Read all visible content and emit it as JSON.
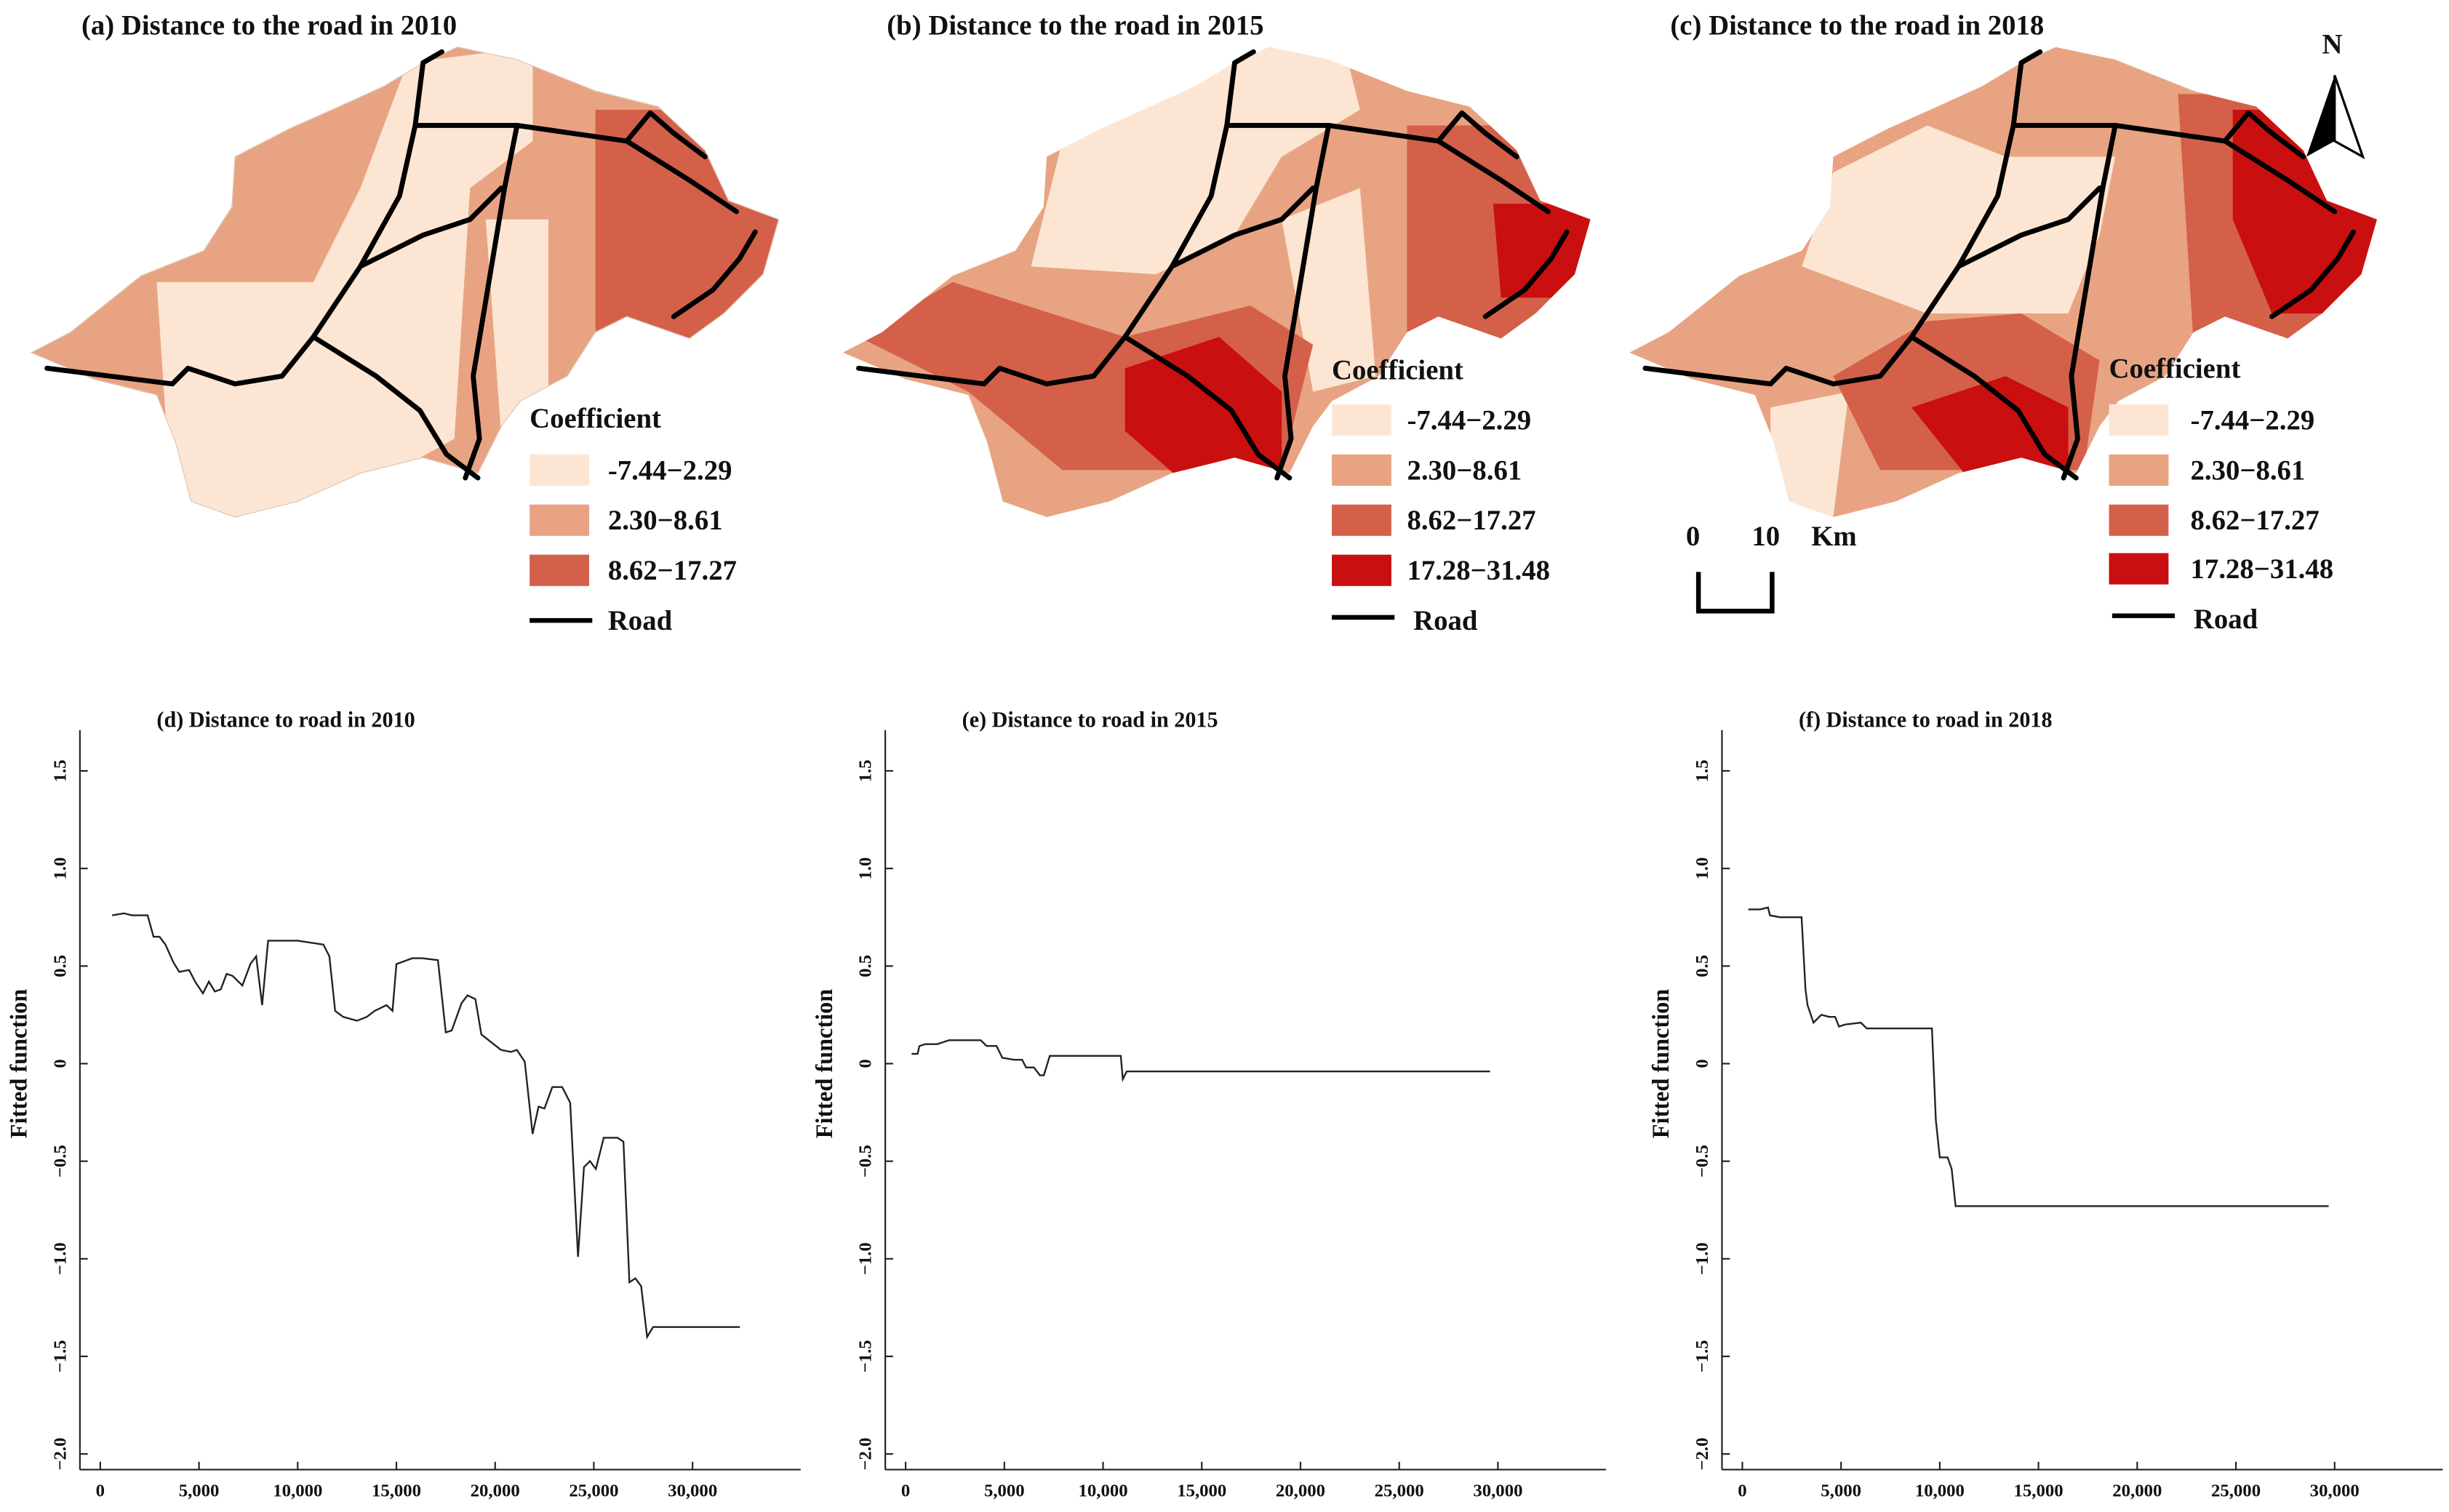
{
  "colors": {
    "class1": "#fce6d3",
    "class2": "#e8a482",
    "class3": "#d4604a",
    "class4": "#c90f0f",
    "road": "#000000"
  },
  "maps": [
    {
      "title": "(a) Distance to the road in 2010",
      "legend_title": "Coefficient",
      "classes": [
        "-7.44−2.29",
        "2.30−8.61",
        "8.62−17.27"
      ],
      "road_label": "Road"
    },
    {
      "title": "(b) Distance to the road in 2015",
      "legend_title": "Coefficient",
      "classes": [
        "-7.44−2.29",
        "2.30−8.61",
        "8.62−17.27",
        "17.28−31.48"
      ],
      "road_label": "Road"
    },
    {
      "title": "(c) Distance to the road in 2018",
      "legend_title": "Coefficient",
      "classes": [
        "-7.44−2.29",
        "2.30−8.61",
        "8.62−17.27",
        "17.28−31.48"
      ],
      "road_label": "Road"
    }
  ],
  "north_label": "N",
  "scale_bar": {
    "zero": "0",
    "ten": "10",
    "unit": "Km"
  },
  "chart_data": [
    {
      "type": "line",
      "title": "(d) Distance to road in 2010",
      "xlabel": "",
      "ylabel": "Fitted function",
      "xlim": [
        0,
        34000
      ],
      "ylim": [
        -2.0,
        1.7
      ],
      "xticks": [
        0,
        5000,
        10000,
        15000,
        20000,
        25000,
        30000
      ],
      "xtick_labels": [
        "0",
        "5,000",
        "10,000",
        "15,000",
        "20,000",
        "25,000",
        "30,000"
      ],
      "yticks": [
        -2.0,
        -1.5,
        -1.0,
        -0.5,
        0,
        0.5,
        1.0,
        1.5
      ],
      "ytick_labels": [
        "−2.0",
        "−1.5",
        "−1.0",
        "−0.5",
        "0",
        "0.5",
        "1.0",
        "1.5"
      ],
      "x": [
        600,
        1200,
        1600,
        2400,
        2700,
        3000,
        3300,
        3700,
        4000,
        4500,
        4800,
        5200,
        5500,
        5800,
        6100,
        6400,
        6700,
        7200,
        7600,
        7900,
        8200,
        8500,
        10000,
        11300,
        11600,
        11900,
        12300,
        13000,
        13500,
        13900,
        14500,
        14800,
        15000,
        15800,
        16300,
        17100,
        17500,
        17800,
        18300,
        18600,
        19000,
        19300,
        19800,
        20300,
        20800,
        21100,
        21500,
        21900,
        22200,
        22500,
        22900,
        23400,
        23800,
        24200,
        24500,
        24800,
        25100,
        25500,
        26200,
        26500,
        26800,
        27100,
        27400,
        27700,
        28000,
        32400
      ],
      "y": [
        0.76,
        0.77,
        0.76,
        0.76,
        0.65,
        0.65,
        0.61,
        0.52,
        0.47,
        0.48,
        0.42,
        0.36,
        0.42,
        0.37,
        0.38,
        0.46,
        0.45,
        0.4,
        0.51,
        0.55,
        0.3,
        0.63,
        0.63,
        0.61,
        0.55,
        0.27,
        0.24,
        0.22,
        0.24,
        0.27,
        0.3,
        0.27,
        0.51,
        0.54,
        0.54,
        0.53,
        0.16,
        0.17,
        0.31,
        0.35,
        0.33,
        0.15,
        0.11,
        0.07,
        0.06,
        0.07,
        0.01,
        -0.36,
        -0.22,
        -0.23,
        -0.12,
        -0.12,
        -0.2,
        -0.99,
        -0.53,
        -0.5,
        -0.54,
        -0.38,
        -0.38,
        -0.4,
        -1.12,
        -1.1,
        -1.14,
        -1.4,
        -1.35,
        -1.35
      ]
    },
    {
      "type": "line",
      "title": "(e) Distance to road in 2015",
      "xlabel": "",
      "ylabel": "Fitted function",
      "xlim": [
        0,
        34000
      ],
      "ylim": [
        -2.0,
        1.7
      ],
      "xticks": [
        0,
        5000,
        10000,
        15000,
        20000,
        25000,
        30000
      ],
      "xtick_labels": [
        "0",
        "5,000",
        "10,000",
        "15,000",
        "20,000",
        "25,000",
        "30,000"
      ],
      "yticks": [
        -2.0,
        -1.5,
        -1.0,
        -0.5,
        0,
        0.5,
        1.0,
        1.5
      ],
      "ytick_labels": [
        "−2.0",
        "−1.5",
        "−1.0",
        "−0.5",
        "0",
        "0.5",
        "1.0",
        "1.5"
      ],
      "x": [
        300,
        600,
        700,
        1000,
        1600,
        2200,
        3800,
        4100,
        4600,
        4900,
        5500,
        5900,
        6100,
        6500,
        6800,
        7000,
        7300,
        10900,
        11000,
        11200,
        29600
      ],
      "y": [
        0.05,
        0.05,
        0.09,
        0.1,
        0.1,
        0.12,
        0.12,
        0.09,
        0.09,
        0.03,
        0.02,
        0.02,
        -0.02,
        -0.02,
        -0.06,
        -0.06,
        0.04,
        0.04,
        -0.08,
        -0.04,
        -0.04
      ]
    },
    {
      "type": "line",
      "title": "(f) Distance to road in 2018",
      "xlabel": "",
      "ylabel": "Fitted function",
      "xlim": [
        0,
        34000
      ],
      "ylim": [
        -2.0,
        1.7
      ],
      "xticks": [
        0,
        5000,
        10000,
        15000,
        20000,
        25000,
        30000
      ],
      "xtick_labels": [
        "0",
        "5,000",
        "10,000",
        "15,000",
        "20,000",
        "25,000",
        "30,000"
      ],
      "yticks": [
        -2.0,
        -1.5,
        -1.0,
        -0.5,
        0,
        0.5,
        1.0,
        1.5
      ],
      "ytick_labels": [
        "−2.0",
        "−1.5",
        "−1.0",
        "−0.5",
        "0",
        "0.5",
        "1.0",
        "1.5"
      ],
      "x": [
        300,
        900,
        1300,
        1400,
        1900,
        3000,
        3200,
        3300,
        3600,
        4000,
        4400,
        4700,
        4900,
        5200,
        6000,
        6300,
        9600,
        9800,
        10000,
        10400,
        10600,
        10800,
        29700
      ],
      "y": [
        0.79,
        0.79,
        0.8,
        0.76,
        0.75,
        0.75,
        0.38,
        0.3,
        0.21,
        0.25,
        0.24,
        0.24,
        0.19,
        0.2,
        0.21,
        0.18,
        0.18,
        -0.29,
        -0.48,
        -0.48,
        -0.54,
        -0.73,
        -0.73
      ]
    }
  ]
}
